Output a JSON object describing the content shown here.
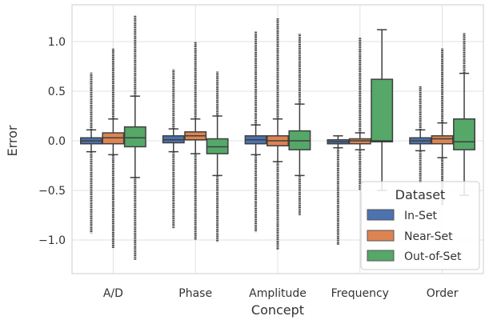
{
  "chart_data": {
    "type": "box",
    "xlabel": "Concept",
    "ylabel": "Error",
    "categories": [
      "A/D",
      "Phase",
      "Amplitude",
      "Frequency",
      "Order"
    ],
    "ylim": [
      -1.35,
      1.38
    ],
    "yticks": [
      {
        "value": -1.0,
        "label": "−1.0"
      },
      {
        "value": -0.5,
        "label": "−0.5"
      },
      {
        "value": 0.0,
        "label": "0.0"
      },
      {
        "value": 0.5,
        "label": "0.5"
      },
      {
        "value": 1.0,
        "label": "1.0"
      }
    ],
    "grid": true,
    "legend": {
      "title": "Dataset",
      "position": "lower-right"
    },
    "series": [
      {
        "name": "In-Set",
        "color": "#4c72b0",
        "boxes": [
          {
            "q1": -0.03,
            "median": 0.0,
            "q3": 0.03,
            "whisker_low": -0.11,
            "whisker_high": 0.11,
            "flier_low": -0.93,
            "flier_high": 0.69
          },
          {
            "q1": -0.02,
            "median": 0.01,
            "q3": 0.05,
            "whisker_low": -0.11,
            "whisker_high": 0.12,
            "flier_low": -0.88,
            "flier_high": 0.72
          },
          {
            "q1": -0.03,
            "median": 0.01,
            "q3": 0.05,
            "whisker_low": -0.14,
            "whisker_high": 0.16,
            "flier_low": -0.92,
            "flier_high": 1.1
          },
          {
            "q1": -0.03,
            "median": -0.01,
            "q3": 0.01,
            "whisker_low": -0.07,
            "whisker_high": 0.05,
            "flier_low": -1.05,
            "flier_high": 0.05
          },
          {
            "q1": -0.03,
            "median": 0.0,
            "q3": 0.03,
            "whisker_low": -0.1,
            "whisker_high": 0.11,
            "flier_low": -0.43,
            "flier_high": 0.55
          }
        ]
      },
      {
        "name": "Near-Set",
        "color": "#dd8452",
        "boxes": [
          {
            "q1": -0.03,
            "median": 0.03,
            "q3": 0.08,
            "whisker_low": -0.14,
            "whisker_high": 0.22,
            "flier_low": -1.08,
            "flier_high": 0.93
          },
          {
            "q1": 0.01,
            "median": 0.05,
            "q3": 0.09,
            "whisker_low": -0.13,
            "whisker_high": 0.22,
            "flier_low": -1.0,
            "flier_high": 1.0
          },
          {
            "q1": -0.05,
            "median": 0.0,
            "q3": 0.05,
            "whisker_low": -0.21,
            "whisker_high": 0.22,
            "flier_low": -1.1,
            "flier_high": 1.24
          },
          {
            "q1": -0.03,
            "median": 0.0,
            "q3": 0.02,
            "whisker_low": -0.09,
            "whisker_high": 0.08,
            "flier_low": -0.5,
            "flier_high": 1.04
          },
          {
            "q1": -0.03,
            "median": 0.02,
            "q3": 0.05,
            "whisker_low": -0.17,
            "whisker_high": 0.18,
            "flier_low": -0.65,
            "flier_high": 0.93
          }
        ]
      },
      {
        "name": "Out-of-Set",
        "color": "#55a868",
        "boxes": [
          {
            "q1": -0.06,
            "median": 0.03,
            "q3": 0.14,
            "whisker_low": -0.37,
            "whisker_high": 0.45,
            "flier_low": -1.2,
            "flier_high": 1.26
          },
          {
            "q1": -0.13,
            "median": -0.06,
            "q3": 0.02,
            "whisker_low": -0.35,
            "whisker_high": 0.25,
            "flier_low": -1.02,
            "flier_high": 0.7
          },
          {
            "q1": -0.09,
            "median": 0.0,
            "q3": 0.1,
            "whisker_low": -0.35,
            "whisker_high": 0.37,
            "flier_low": -0.75,
            "flier_high": 1.08
          },
          {
            "q1": -0.01,
            "median": 0.0,
            "q3": 0.62,
            "whisker_low": -0.5,
            "whisker_high": 1.12,
            "flier_low": -0.5,
            "flier_high": 1.12
          },
          {
            "q1": -0.09,
            "median": -0.01,
            "q3": 0.22,
            "whisker_low": -0.55,
            "whisker_high": 0.68,
            "flier_low": -0.55,
            "flier_high": 1.09
          }
        ]
      }
    ]
  }
}
